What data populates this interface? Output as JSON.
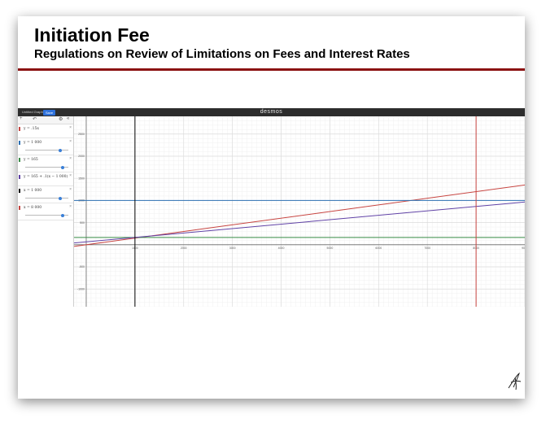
{
  "slide": {
    "title": "Initiation Fee",
    "subtitle": "Regulations on Review of Limitations on Fees and Interest Rates",
    "accent_color": "#8b1212"
  },
  "desmos": {
    "graph_name": "Untitled Graph",
    "save_label": "Save",
    "brand": "desmos",
    "toolbar": {
      "add_icon": "plus-icon",
      "undo_icon": "undo-icon",
      "settings_icon": "gear-icon",
      "collapse_icon": "double-chevron-left-icon"
    },
    "expressions": [
      {
        "text": "y = .15x",
        "color": "#c74440",
        "has_slider": false
      },
      {
        "text": "y = 1 000",
        "color": "#2d70b3",
        "has_slider": true,
        "slider_level": 0.82
      },
      {
        "text": "y = 165",
        "color": "#388c46",
        "has_slider": true,
        "slider_level": 0.86
      },
      {
        "text": "y = 165 + .1(x − 1 000)",
        "color": "#6042a6",
        "has_slider": false
      },
      {
        "text": "x = 1 000",
        "color": "#000000",
        "has_slider": true,
        "slider_level": 0.82
      },
      {
        "text": "x = 8 000",
        "color": "#c74440",
        "has_slider": true,
        "slider_level": 0.86
      }
    ]
  },
  "chart_data": {
    "type": "line",
    "title": "",
    "xlabel": "",
    "ylabel": "",
    "xlim": [
      -250,
      9000
    ],
    "ylim": [
      -1400,
      2900
    ],
    "grid": true,
    "x_ticks": [
      1000,
      2000,
      3000,
      4000,
      5000,
      6000,
      7000,
      8000,
      9000
    ],
    "x_tick_labels": [
      "1000",
      "2000",
      "3000",
      "4000",
      "5000",
      "6000",
      "7000",
      "8000",
      "9000"
    ],
    "y_ticks": [
      -1000,
      -500,
      500,
      1000,
      1500,
      2000,
      2500
    ],
    "y_tick_labels": [
      "-1000",
      "-500",
      "500",
      "1000",
      "1500",
      "2000",
      "2500"
    ],
    "series": [
      {
        "type": "line",
        "slope": 0.15,
        "intercept": 0,
        "color": "#c74440"
      },
      {
        "type": "hline",
        "y": 1000,
        "color": "#2d70b3"
      },
      {
        "type": "hline",
        "y": 165,
        "color": "#388c46"
      },
      {
        "type": "line",
        "slope": 0.1,
        "intercept": 65,
        "color": "#6042a6"
      },
      {
        "type": "vline",
        "x": 1000,
        "color": "#000000"
      },
      {
        "type": "vline",
        "x": 8000,
        "color": "#c74440"
      }
    ]
  }
}
